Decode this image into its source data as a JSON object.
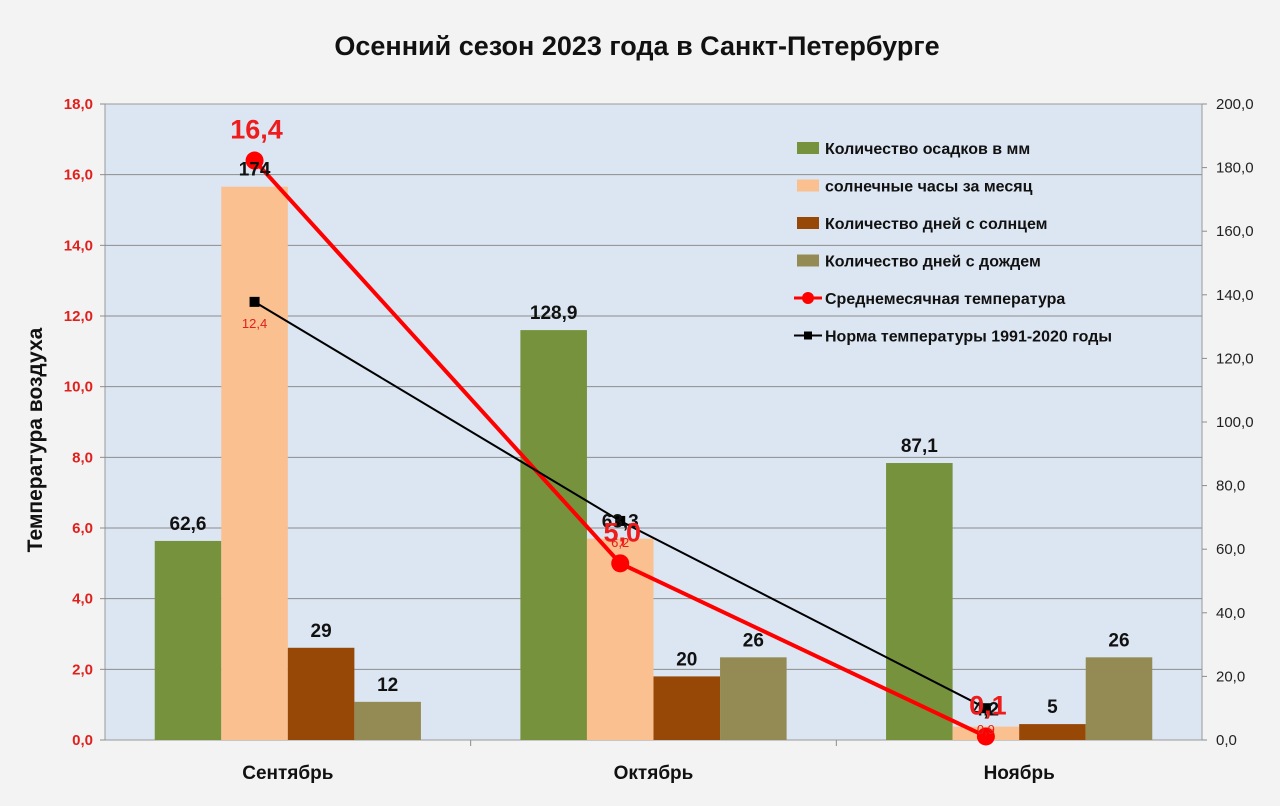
{
  "chart_data": {
    "type": "bar",
    "title": "Осенний сезон 2023 года в Санкт-Петербурге",
    "categories": [
      "Сентябрь",
      "Октябрь",
      "Ноябрь"
    ],
    "ylabel": "Температура воздуха",
    "ylim": [
      0,
      18
    ],
    "y_ticks": [
      "0,0",
      "2,0",
      "4,0",
      "6,0",
      "8,0",
      "10,0",
      "12,0",
      "14,0",
      "16,0",
      "18,0"
    ],
    "y2lim": [
      0,
      200
    ],
    "y2_ticks": [
      "0,0",
      "20,0",
      "40,0",
      "60,0",
      "80,0",
      "100,0",
      "120,0",
      "140,0",
      "160,0",
      "180,0",
      "200,0"
    ],
    "grid": true,
    "legend_position": "top-right",
    "series": [
      {
        "name": "Количество осадков в мм",
        "kind": "bar",
        "axis": "right",
        "color": "#76923c",
        "values": [
          62.6,
          128.9,
          87.1
        ],
        "labels": [
          "62,6",
          "128,9",
          "87,1"
        ]
      },
      {
        "name": "солнечные часы за месяц",
        "kind": "bar",
        "axis": "right",
        "color": "#fac090",
        "values": [
          174,
          63.3,
          4.2
        ],
        "labels": [
          "174",
          "63,3",
          "4,2"
        ]
      },
      {
        "name": "Количество дней с солнцем",
        "kind": "bar",
        "axis": "right",
        "color": "#974806",
        "values": [
          29,
          20,
          5
        ],
        "labels": [
          "29",
          "20",
          "5"
        ]
      },
      {
        "name": "Количество дней с дождем",
        "kind": "bar",
        "axis": "right",
        "color": "#948a54",
        "values": [
          12,
          26,
          26
        ],
        "labels": [
          "12",
          "26",
          "26"
        ]
      },
      {
        "name": "Среднемесячная температура",
        "kind": "line",
        "axis": "left",
        "color": "#ff0000",
        "values": [
          16.4,
          5.0,
          0.1
        ],
        "labels": [
          "16,4",
          "5,0",
          "0,1"
        ]
      },
      {
        "name": "Норма температуры 1991-2020 годы",
        "kind": "line",
        "axis": "left",
        "color": "#000000",
        "values": [
          12.4,
          6.2,
          0.9
        ],
        "labels": [
          "12,4",
          "6,2",
          "0,9"
        ]
      }
    ]
  }
}
